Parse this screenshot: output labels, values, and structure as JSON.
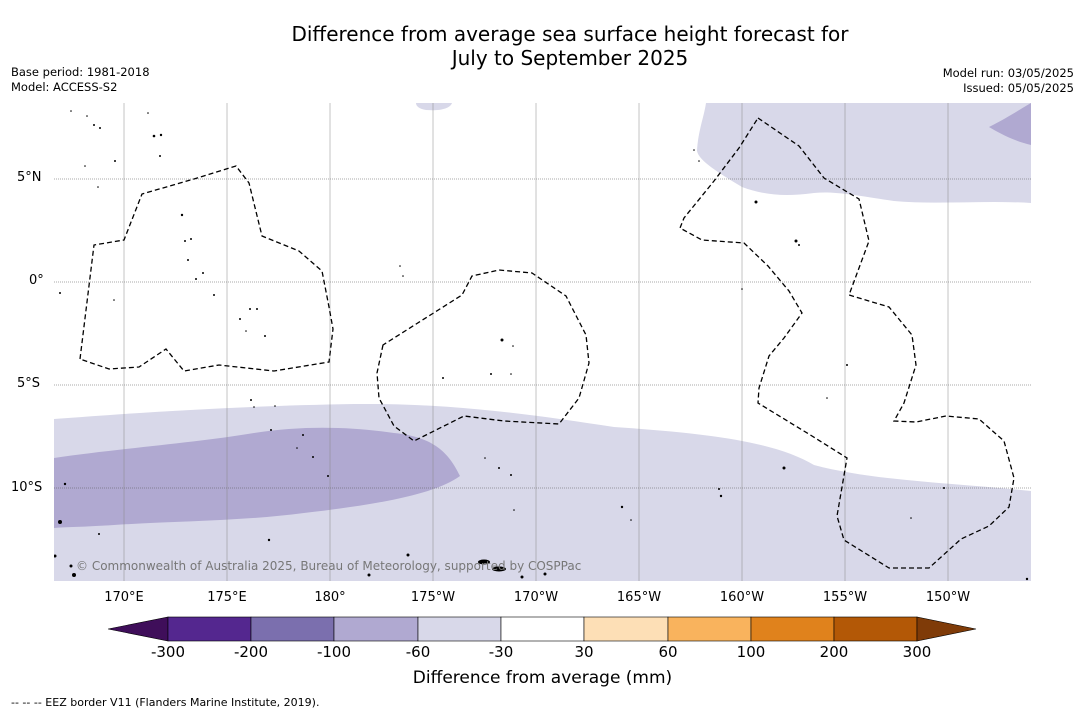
{
  "title_line1": "Difference from average sea surface height forecast for",
  "title_line2": "July to September 2025",
  "meta_left": {
    "base_period": "Base period: 1981-2018",
    "model": "Model: ACCESS-S2"
  },
  "meta_right": {
    "model_run": "Model run: 03/05/2025",
    "issued": "Issued: 05/05/2025"
  },
  "latitude_labels": [
    "5°N",
    "0°",
    "5°S",
    "10°S"
  ],
  "longitude_labels": [
    "170°E",
    "175°E",
    "180°",
    "175°W",
    "170°W",
    "165°W",
    "160°W",
    "155°W",
    "150°W"
  ],
  "copyright": "© Commonwealth of Australia 2025, Bureau of Meteorology, supported by COSPPac",
  "colorbar": {
    "ticks": [
      "-300",
      "-200",
      "-100",
      "-60",
      "-30",
      "30",
      "60",
      "100",
      "200",
      "300"
    ],
    "colors": [
      "#3f0e5a",
      "#54278f",
      "#7b6fae",
      "#b0a9d1",
      "#d8d8e9",
      "#ffffff",
      "#fddfb6",
      "#f9b35d",
      "#e0821c",
      "#b35806",
      "#7f3b08"
    ],
    "label": "Difference from average (mm)"
  },
  "footer": "--  --  -- EEZ border V11 (Flanders Marine Institute, 2019)."
}
